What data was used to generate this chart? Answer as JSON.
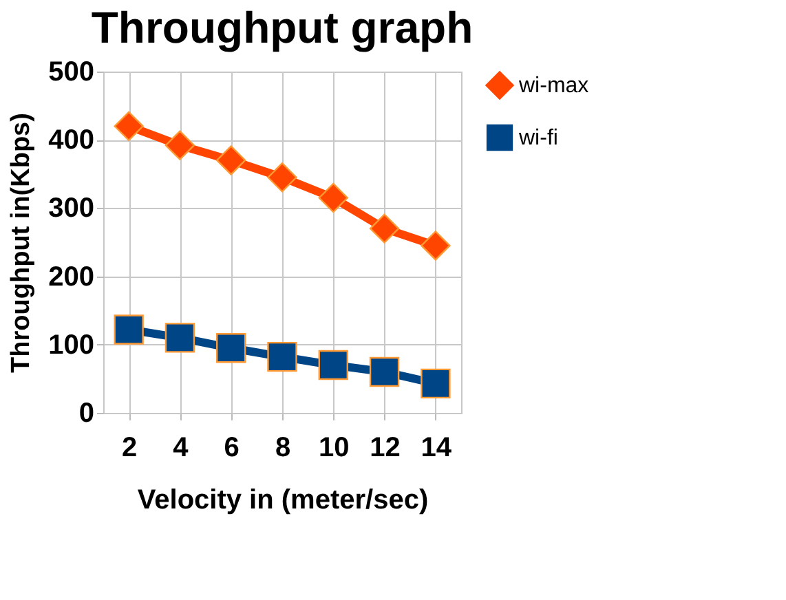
{
  "chart_data": {
    "type": "line",
    "title": "Throughput graph",
    "xlabel": "Velocity in (meter/sec)",
    "ylabel": "Throughput in(Kbps)",
    "categories": [
      "2",
      "4",
      "6",
      "8",
      "10",
      "12",
      "14"
    ],
    "series": [
      {
        "name": "wi-max",
        "color": "#ff4500",
        "marker": "diamond",
        "values": [
          420,
          392,
          370,
          345,
          315,
          270,
          245
        ]
      },
      {
        "name": "wi-fi",
        "color": "#004586",
        "marker": "square",
        "values": [
          122,
          110,
          95,
          82,
          70,
          60,
          43
        ]
      }
    ],
    "ylim": [
      0,
      500
    ],
    "yticks": [
      0,
      100,
      200,
      300,
      400,
      500
    ],
    "grid": true,
    "legend": "right",
    "line_style": "solid"
  }
}
